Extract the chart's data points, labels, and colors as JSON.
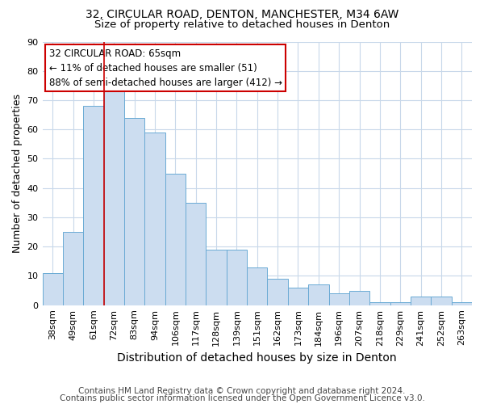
{
  "title1": "32, CIRCULAR ROAD, DENTON, MANCHESTER, M34 6AW",
  "title2": "Size of property relative to detached houses in Denton",
  "xlabel": "Distribution of detached houses by size in Denton",
  "ylabel": "Number of detached properties",
  "footnote1": "Contains HM Land Registry data © Crown copyright and database right 2024.",
  "footnote2": "Contains public sector information licensed under the Open Government Licence v3.0.",
  "categories": [
    "38sqm",
    "49sqm",
    "61sqm",
    "72sqm",
    "83sqm",
    "94sqm",
    "106sqm",
    "117sqm",
    "128sqm",
    "139sqm",
    "151sqm",
    "162sqm",
    "173sqm",
    "184sqm",
    "196sqm",
    "207sqm",
    "218sqm",
    "229sqm",
    "241sqm",
    "252sqm",
    "263sqm"
  ],
  "values": [
    11,
    25,
    68,
    73,
    64,
    59,
    45,
    35,
    19,
    19,
    13,
    9,
    6,
    7,
    4,
    5,
    1,
    1,
    3,
    3,
    1
  ],
  "bar_color": "#ccddf0",
  "bar_edge_color": "#6aaad4",
  "red_line_x": 2.5,
  "annotation_line1": "32 CIRCULAR ROAD: 65sqm",
  "annotation_line2": "← 11% of detached houses are smaller (51)",
  "annotation_line3": "88% of semi-detached houses are larger (412) →",
  "annotation_box_color": "#ffffff",
  "annotation_box_edge": "#cc0000",
  "red_line_color": "#cc0000",
  "ylim": [
    0,
    90
  ],
  "yticks": [
    0,
    10,
    20,
    30,
    40,
    50,
    60,
    70,
    80,
    90
  ],
  "grid_color": "#c8d8ea",
  "background_color": "#ffffff",
  "title1_fontsize": 10,
  "title2_fontsize": 9.5,
  "xlabel_fontsize": 10,
  "ylabel_fontsize": 9,
  "tick_fontsize": 8,
  "annot_fontsize": 8.5,
  "footnote_fontsize": 7.5
}
